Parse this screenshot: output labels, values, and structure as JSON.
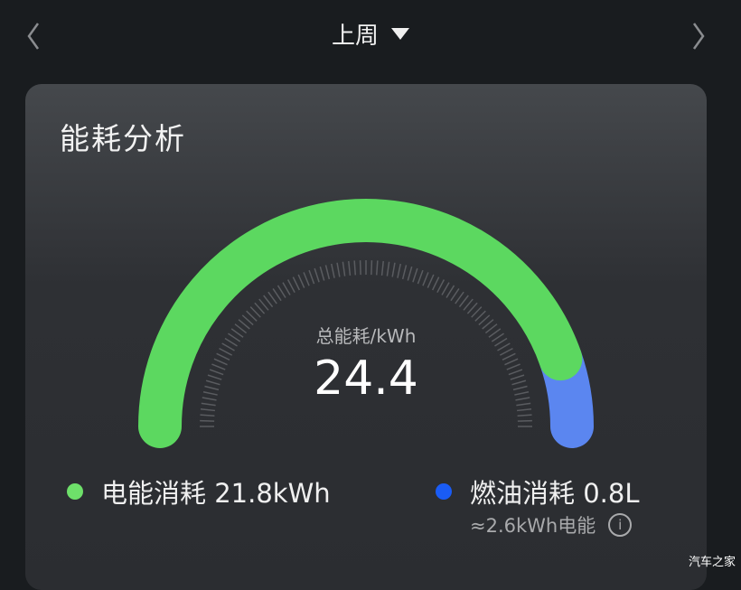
{
  "header": {
    "period": "上周",
    "prev_icon": "chevron-left-icon",
    "next_icon": "chevron-right-icon",
    "dropdown_icon": "triangle-down-icon"
  },
  "card": {
    "title": "能耗分析",
    "gauge": {
      "total_label": "总能耗/kWh",
      "total_value": "24.4",
      "total": 24.4,
      "segments": [
        {
          "name": "电能消耗",
          "value": 21.8,
          "color": "#5cd860"
        },
        {
          "name": "燃油消耗",
          "value": 2.6,
          "color": "#5b86f0"
        }
      ]
    },
    "legend": [
      {
        "label": "电能消耗 21.8kWh",
        "color": "#6ee06a"
      },
      {
        "label": "燃油消耗 0.8L",
        "color": "#1a5cf5",
        "sub": "≈2.6kWh电能",
        "info_icon": "info-icon"
      }
    ]
  },
  "watermark": "汽车之家"
}
